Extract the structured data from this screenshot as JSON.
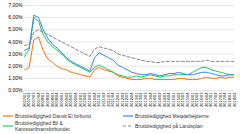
{
  "chart_data": {
    "type": "line",
    "categories": [
      "2007/01",
      "2007/02",
      "2007/03",
      "2007/04",
      "2008/01",
      "2008/02",
      "2008/03",
      "2008/04",
      "2009/01",
      "2009/02",
      "2009/03",
      "2009/04",
      "2010/01",
      "2010/02",
      "2010/03",
      "2010/04",
      "2011/01",
      "2011/02",
      "2011/03",
      "2011/04",
      "2012/01",
      "2012/02",
      "2012/03",
      "2012/04",
      "2013/01",
      "2013/02",
      "2013/03",
      "2013/04",
      "2014/01",
      "2014/02",
      "2014/03",
      "2014/04",
      "2015/01",
      "2015/02",
      "2015/03",
      "2015/04",
      "2016/01",
      "2016/02",
      "2016/03",
      "2016/04",
      "2017/01",
      "2017/02",
      "2017/03",
      "2017/04",
      "2018/01",
      "2018/02"
    ],
    "series": [
      {
        "name": "Bruttoledigighed Dansk El forbund",
        "color": "#F97316",
        "line_style": "solid",
        "values": [
          0.017,
          0.019,
          0.042,
          0.044,
          0.033,
          0.026,
          0.023,
          0.02,
          0.018,
          0.017,
          0.015,
          0.014,
          0.013,
          0.012,
          0.011,
          0.017,
          0.019,
          0.017,
          0.016,
          0.015,
          0.012,
          0.011,
          0.01,
          0.009,
          0.009,
          0.009,
          0.01,
          0.01,
          0.009,
          0.009,
          0.009,
          0.009,
          0.009,
          0.01,
          0.01,
          0.009,
          0.009,
          0.009,
          0.01,
          0.011,
          0.01,
          0.01,
          0.011,
          0.01,
          0.011,
          0.011
        ]
      },
      {
        "name": "Bruttoledigighed Bil & Karosseribransforbundet",
        "color": "#22C55E",
        "line_style": "solid",
        "values": [
          0.028,
          0.034,
          0.06,
          0.057,
          0.046,
          0.04,
          0.036,
          0.033,
          0.03,
          0.026,
          0.023,
          0.021,
          0.019,
          0.017,
          0.015,
          0.019,
          0.021,
          0.019,
          0.017,
          0.015,
          0.013,
          0.012,
          0.011,
          0.011,
          0.012,
          0.011,
          0.012,
          0.013,
          0.012,
          0.011,
          0.012,
          0.012,
          0.013,
          0.013,
          0.013,
          0.013,
          0.015,
          0.017,
          0.019,
          0.019,
          0.017,
          0.016,
          0.015,
          0.014,
          0.013,
          0.013
        ]
      },
      {
        "name": "Bruttoledigighed Metalarbejderne",
        "color": "#3B82F6",
        "line_style": "solid",
        "values": [
          0.033,
          0.035,
          0.062,
          0.06,
          0.05,
          0.043,
          0.038,
          0.035,
          0.031,
          0.027,
          0.024,
          0.022,
          0.02,
          0.018,
          0.016,
          0.027,
          0.031,
          0.029,
          0.027,
          0.025,
          0.021,
          0.019,
          0.017,
          0.015,
          0.014,
          0.013,
          0.013,
          0.014,
          0.013,
          0.012,
          0.013,
          0.014,
          0.014,
          0.015,
          0.014,
          0.013,
          0.013,
          0.014,
          0.015,
          0.015,
          0.014,
          0.013,
          0.012,
          0.012,
          0.013,
          0.013
        ]
      },
      {
        "name": "Bruttoledigighed på Landsplan",
        "color": "#888888",
        "line_style": "dashed",
        "values": [
          0.037,
          0.038,
          0.048,
          0.05,
          0.048,
          0.046,
          0.044,
          0.042,
          0.04,
          0.038,
          0.036,
          0.034,
          0.032,
          0.03,
          0.028,
          0.034,
          0.036,
          0.035,
          0.034,
          0.033,
          0.03,
          0.029,
          0.028,
          0.027,
          0.026,
          0.025,
          0.024,
          0.024,
          0.023,
          0.023,
          0.024,
          0.024,
          0.024,
          0.024,
          0.024,
          0.024,
          0.024,
          0.024,
          0.024,
          0.025,
          0.024,
          0.024,
          0.024,
          0.024,
          0.024,
          0.024
        ]
      }
    ],
    "ylim": [
      0.0,
      0.07
    ],
    "yticks": [
      {
        "value": 0.0,
        "label": "0,00%"
      },
      {
        "value": 0.01,
        "label": "1,00%"
      },
      {
        "value": 0.02,
        "label": "2,00%"
      },
      {
        "value": 0.03,
        "label": "3,00%"
      },
      {
        "value": 0.04,
        "label": "4,00%"
      },
      {
        "value": 0.05,
        "label": "5,00%"
      },
      {
        "value": 0.06,
        "label": "6,00%"
      },
      {
        "value": 0.07,
        "label": "7,00%"
      }
    ],
    "grid": true,
    "legend": "bottom"
  }
}
